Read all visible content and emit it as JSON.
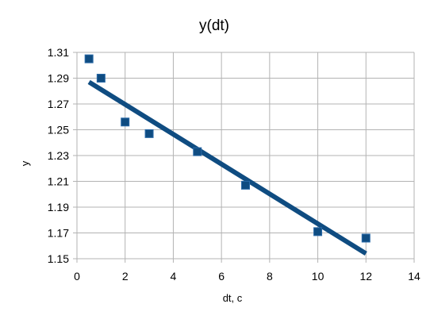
{
  "chart_data": {
    "type": "scatter",
    "title": "y(dt)",
    "xlabel": "dt, c",
    "ylabel": "y",
    "xlim": [
      0,
      14
    ],
    "ylim": [
      1.15,
      1.31
    ],
    "x_ticks": [
      0,
      2,
      4,
      6,
      8,
      10,
      12,
      14
    ],
    "x_tick_labels": [
      "0",
      "2",
      "4",
      "6",
      "8",
      "10",
      "12",
      "14"
    ],
    "y_ticks": [
      1.15,
      1.17,
      1.19,
      1.21,
      1.23,
      1.25,
      1.27,
      1.29,
      1.31
    ],
    "y_tick_labels": [
      "1.15",
      "1.17",
      "1.19",
      "1.21",
      "1.23",
      "1.25",
      "1.27",
      "1.29",
      "1.31"
    ],
    "grid": true,
    "legend": "none",
    "series": [
      {
        "marker": "square",
        "color": "#0f4c81",
        "x": [
          0.5,
          1,
          2,
          3,
          5,
          7,
          10,
          12
        ],
        "y": [
          1.305,
          1.29,
          1.256,
          1.247,
          1.233,
          1.207,
          1.171,
          1.166
        ]
      }
    ],
    "trendline": {
      "type": "linear",
      "color": "#0f4c81",
      "x": [
        0.5,
        12
      ],
      "y": [
        1.287,
        1.154
      ]
    }
  }
}
